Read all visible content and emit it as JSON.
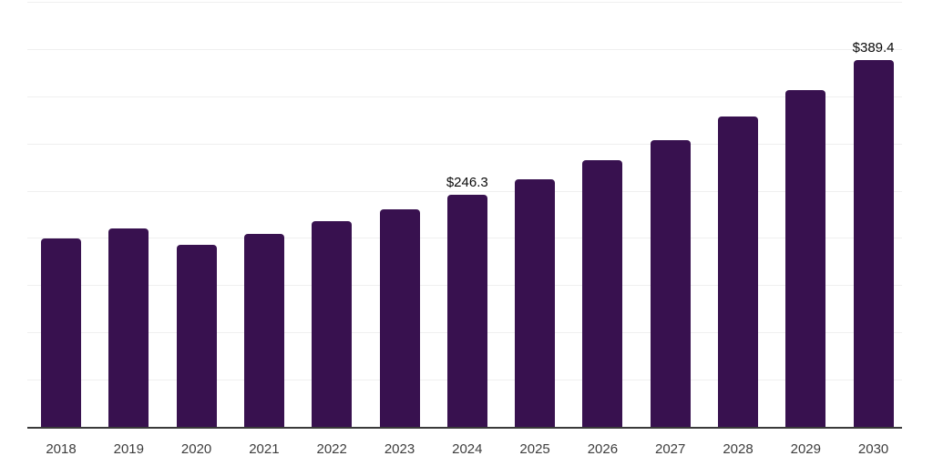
{
  "chart_data": {
    "type": "bar",
    "title": "",
    "xlabel": "",
    "ylabel": "",
    "categories": [
      "2018",
      "2019",
      "2020",
      "2021",
      "2022",
      "2023",
      "2024",
      "2025",
      "2026",
      "2027",
      "2028",
      "2029",
      "2030"
    ],
    "values": [
      200.1,
      210.8,
      193.6,
      204.9,
      218.4,
      230.8,
      246.3,
      263.4,
      283.2,
      304.4,
      330.0,
      357.7,
      389.4
    ],
    "data_labels": {
      "2024": "$246.3",
      "2030": "$389.4"
    },
    "ylim": [
      0,
      450
    ],
    "gridline_step": 50,
    "grid": "horizontal",
    "legend": "none",
    "colors": {
      "bar": "#38114F",
      "gridline": "#efefef",
      "axis_line": "#3a3a3a",
      "tick_label": "#3d3d3d",
      "value_label": "#0a0a0a",
      "background": "#ffffff"
    }
  }
}
